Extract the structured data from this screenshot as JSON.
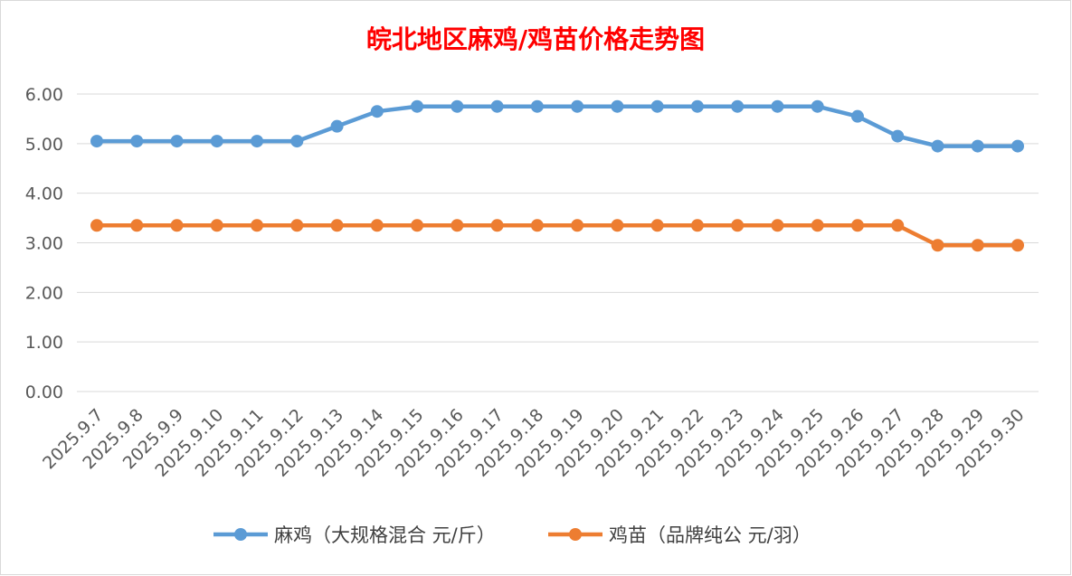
{
  "chart_data": {
    "type": "line",
    "title": "皖北地区麻鸡/鸡苗价格走势图",
    "title_color": "#ff0000",
    "categories": [
      "2025.9.7",
      "2025.9.8",
      "2025.9.9",
      "2025.9.10",
      "2025.9.11",
      "2025.9.12",
      "2025.9.13",
      "2025.9.14",
      "2025.9.15",
      "2025.9.16",
      "2025.9.17",
      "2025.9.18",
      "2025.9.19",
      "2025.9.20",
      "2025.9.21",
      "2025.9.22",
      "2025.9.23",
      "2025.9.24",
      "2025.9.25",
      "2025.9.26",
      "2025.9.27",
      "2025.9.28",
      "2025.9.29",
      "2025.9.30"
    ],
    "yticks": [
      "0.00",
      "1.00",
      "2.00",
      "3.00",
      "4.00",
      "5.00",
      "6.00"
    ],
    "ylim": [
      0,
      6
    ],
    "grid": true,
    "legend_position": "bottom",
    "series": [
      {
        "name": "麻鸡（大规格混合 元/斤）",
        "color": "#5b9bd5",
        "values": [
          5.05,
          5.05,
          5.05,
          5.05,
          5.05,
          5.05,
          5.35,
          5.65,
          5.75,
          5.75,
          5.75,
          5.75,
          5.75,
          5.75,
          5.75,
          5.75,
          5.75,
          5.75,
          5.75,
          5.55,
          5.15,
          4.95,
          4.95,
          4.95
        ]
      },
      {
        "name": "鸡苗（品牌纯公 元/羽）",
        "color": "#ed7d31",
        "values": [
          3.35,
          3.35,
          3.35,
          3.35,
          3.35,
          3.35,
          3.35,
          3.35,
          3.35,
          3.35,
          3.35,
          3.35,
          3.35,
          3.35,
          3.35,
          3.35,
          3.35,
          3.35,
          3.35,
          3.35,
          3.35,
          2.95,
          2.95,
          2.95
        ]
      }
    ]
  }
}
